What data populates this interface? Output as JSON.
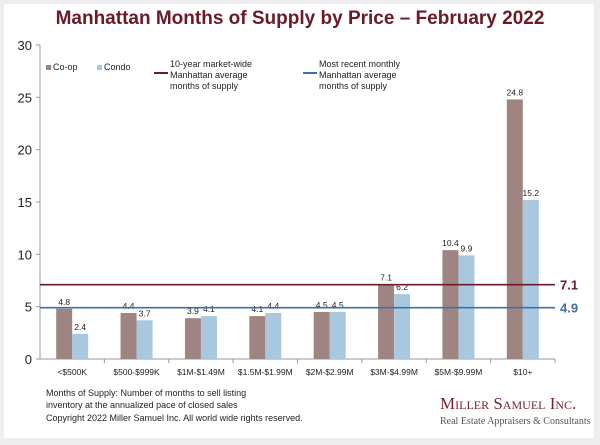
{
  "chart_data": {
    "type": "bar",
    "title": "Manhattan Months of Supply by Price – February 2022",
    "categories": [
      "<$500K",
      "$500-$999K",
      "$1M-$1.49M",
      "$1.5M-$1.99M",
      "$2M-$2.99M",
      "$3M-$4.99M",
      "$5M-$9.99M",
      "$10+"
    ],
    "series": [
      {
        "name": "Co-op",
        "color": "#9e8582",
        "values": [
          4.8,
          4.4,
          3.9,
          4.1,
          4.5,
          7.1,
          10.4,
          24.8
        ]
      },
      {
        "name": "Condo",
        "color": "#a9c7de",
        "values": [
          2.4,
          3.7,
          4.1,
          4.4,
          4.5,
          6.2,
          9.9,
          15.2
        ]
      }
    ],
    "ylim": [
      0,
      30
    ],
    "yticks": [
      0,
      5,
      10,
      15,
      20,
      25,
      30
    ],
    "grid": false,
    "legend": "top-left",
    "reference_lines": [
      {
        "label": "10-year market-wide Manhattan average months of supply",
        "value": 7.1,
        "value_label": "7.1",
        "color": "#6b1a28"
      },
      {
        "label": "Most recent monthly Manhattan average months of supply",
        "value": 4.9,
        "value_label": "4.9",
        "color": "#3f6fa8"
      }
    ]
  },
  "notes": {
    "definition_line1": "Months of Supply: Number of months to sell listing",
    "definition_line2": "inventory at the annualized pace of closed sales",
    "copyright": "Copyright 2022 Miller Samuel Inc.  All world wide rights reserved."
  },
  "logo": {
    "name": "Miller Samuel Inc.",
    "tagline": "Real Estate Appraisers & Consultants"
  }
}
